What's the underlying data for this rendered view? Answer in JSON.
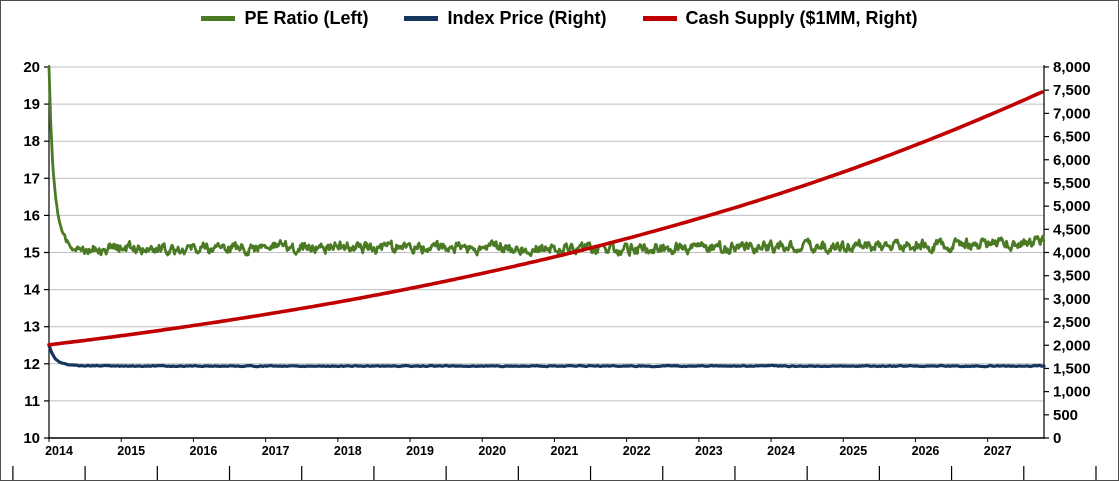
{
  "chart_data": {
    "type": "line",
    "title": "",
    "legend_position": "top",
    "grid": "horizontal",
    "legend": [
      {
        "label": "PE Ratio (Left)",
        "color": "#4a7a23"
      },
      {
        "label": "Index Price (Right)",
        "color": "#17365d"
      },
      {
        "label": "Cash Supply ($1MM, Right)",
        "color": "#c00000"
      }
    ],
    "x_axis": {
      "min": 2014,
      "max": 2027.78,
      "years": [
        2014,
        2015,
        2016,
        2017,
        2018,
        2019,
        2020,
        2021,
        2022,
        2023,
        2024,
        2025,
        2026,
        2027
      ]
    },
    "left_axis": {
      "min": 10,
      "max": 20,
      "ticks": [
        10,
        11,
        12,
        13,
        14,
        15,
        16,
        17,
        18,
        19,
        20
      ]
    },
    "right_axis": {
      "min": 0,
      "max": 8000,
      "step": 500,
      "tick_labels": [
        "0",
        "500",
        "1,000",
        "1,500",
        "2,000",
        "2,500",
        "3,000",
        "3,500",
        "4,000",
        "4,500",
        "5,000",
        "5,500",
        "6,000",
        "6,500",
        "7,000",
        "7,500",
        "8,000"
      ]
    },
    "series": [
      {
        "name": "PE Ratio (Left)",
        "axis": "left",
        "color": "#4a7a23",
        "width": 2.8,
        "step": 0.012,
        "interpolation": "linear",
        "anchors": [
          [
            2014.0,
            20.0
          ],
          [
            2014.02,
            18.7
          ],
          [
            2014.05,
            17.4
          ],
          [
            2014.09,
            16.5
          ],
          [
            2014.13,
            15.95
          ],
          [
            2014.18,
            15.55
          ],
          [
            2014.24,
            15.3
          ],
          [
            2014.32,
            15.18
          ],
          [
            2014.5,
            15.12
          ],
          [
            2016,
            15.12
          ],
          [
            2018,
            15.15
          ],
          [
            2020,
            15.12
          ],
          [
            2022,
            15.1
          ],
          [
            2024,
            15.15
          ],
          [
            2026,
            15.18
          ],
          [
            2027.3,
            15.25
          ],
          [
            2027.78,
            15.35
          ]
        ],
        "noise": {
          "amplitude": 0.12,
          "smoothing": 0.55,
          "seed": 12,
          "ramp": 0.45
        }
      },
      {
        "name": "Index Price (Right)",
        "axis": "right",
        "color": "#17365d",
        "width": 3.2,
        "step": 0.02,
        "interpolation": "linear",
        "anchors": [
          [
            2014.0,
            2000
          ],
          [
            2014.04,
            1830
          ],
          [
            2014.09,
            1700
          ],
          [
            2014.15,
            1630
          ],
          [
            2014.25,
            1585
          ],
          [
            2014.4,
            1562
          ],
          [
            2015,
            1552
          ],
          [
            2027.78,
            1552
          ]
        ],
        "noise": {
          "amplitude": 9,
          "smoothing": 0.5,
          "seed": 5,
          "ramp": 0.35
        }
      },
      {
        "name": "Cash Supply ($1MM, Right)",
        "axis": "right",
        "color": "#c00000",
        "width": 3.6,
        "step": 0.05,
        "interpolation": "log",
        "anchors": [
          [
            2014,
            2010
          ],
          [
            2015,
            2205
          ],
          [
            2016,
            2425
          ],
          [
            2017,
            2665
          ],
          [
            2018,
            2930
          ],
          [
            2019,
            3225
          ],
          [
            2020,
            3550
          ],
          [
            2021,
            3905
          ],
          [
            2022,
            4300
          ],
          [
            2023,
            4735
          ],
          [
            2024,
            5210
          ],
          [
            2025,
            5735
          ],
          [
            2026,
            6315
          ],
          [
            2027,
            6950
          ],
          [
            2027.78,
            7480
          ]
        ]
      }
    ]
  }
}
